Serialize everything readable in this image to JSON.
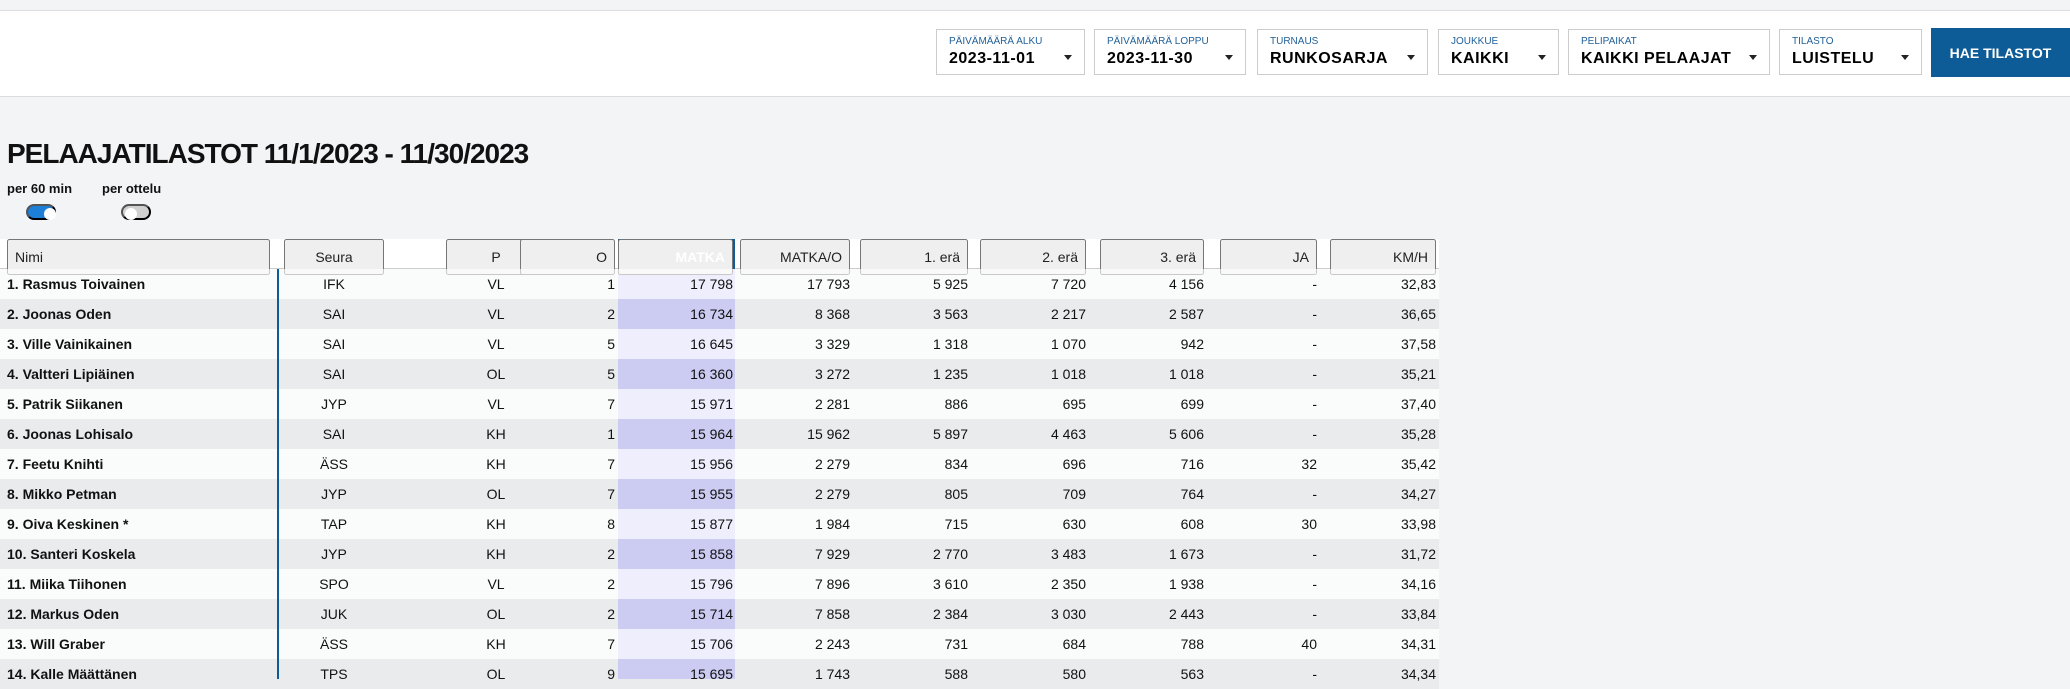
{
  "filters": [
    {
      "label": "PÄIVÄMÄÄRÄ ALKU",
      "value": "2023-11-01"
    },
    {
      "label": "PÄIVÄMÄÄRÄ LOPPU",
      "value": "2023-11-30"
    },
    {
      "label": "TURNAUS",
      "value": "RUNKOSARJA"
    },
    {
      "label": "JOUKKUE",
      "value": "KAIKKI"
    },
    {
      "label": "PELIPAIKAT",
      "value": "KAIKKI PELAAJAT"
    },
    {
      "label": "TILASTO",
      "value": "LUISTELU"
    }
  ],
  "button": "HAE TILASTOT",
  "title": "PELAAJATILASTOT 11/1/2023 - 11/30/2023",
  "toggles": [
    {
      "label": "per 60 min",
      "on": true
    },
    {
      "label": "per ottelu",
      "on": false
    }
  ],
  "table": {
    "columns": [
      "Nimi",
      "Seura",
      "P",
      "O",
      "MATKA",
      "MATKA/O",
      "1. erä",
      "2. erä",
      "3. erä",
      "JA",
      "KM/H"
    ],
    "rows": [
      [
        "1.  Rasmus Toivainen",
        "IFK",
        "VL",
        "1",
        "17 798",
        "17 793",
        "5 925",
        "7 720",
        "4 156",
        "-",
        "32,83"
      ],
      [
        "2.  Joonas Oden",
        "SAI",
        "VL",
        "2",
        "16 734",
        "8 368",
        "3 563",
        "2 217",
        "2 587",
        "-",
        "36,65"
      ],
      [
        "3.  Ville Vainikainen",
        "SAI",
        "VL",
        "5",
        "16 645",
        "3 329",
        "1 318",
        "1 070",
        "942",
        "-",
        "37,58"
      ],
      [
        "4.  Valtteri Lipiäinen",
        "SAI",
        "OL",
        "5",
        "16 360",
        "3 272",
        "1 235",
        "1 018",
        "1 018",
        "-",
        "35,21"
      ],
      [
        "5.  Patrik Siikanen",
        "JYP",
        "VL",
        "7",
        "15 971",
        "2 281",
        "886",
        "695",
        "699",
        "-",
        "37,40"
      ],
      [
        "6.  Joonas Lohisalo",
        "SAI",
        "KH",
        "1",
        "15 964",
        "15 962",
        "5 897",
        "4 463",
        "5 606",
        "-",
        "35,28"
      ],
      [
        "7.  Feetu Knihti",
        "ÄSS",
        "KH",
        "7",
        "15 956",
        "2 279",
        "834",
        "696",
        "716",
        "32",
        "35,42"
      ],
      [
        "8.  Mikko Petman",
        "JYP",
        "OL",
        "7",
        "15 955",
        "2 279",
        "805",
        "709",
        "764",
        "-",
        "34,27"
      ],
      [
        "9.  Oiva Keskinen *",
        "TAP",
        "KH",
        "8",
        "15 877",
        "1 984",
        "715",
        "630",
        "608",
        "30",
        "33,98"
      ],
      [
        "10.  Santeri Koskela",
        "JYP",
        "KH",
        "2",
        "15 858",
        "7 929",
        "2 770",
        "3 483",
        "1 673",
        "-",
        "31,72"
      ],
      [
        "11.  Miika Tiihonen",
        "SPO",
        "VL",
        "2",
        "15 796",
        "7 896",
        "3 610",
        "2 350",
        "1 938",
        "-",
        "34,16"
      ],
      [
        "12.  Markus Oden",
        "JUK",
        "OL",
        "2",
        "15 714",
        "7 858",
        "2 384",
        "3 030",
        "2 443",
        "-",
        "33,84"
      ],
      [
        "13.  Will Graber",
        "ÄSS",
        "KH",
        "7",
        "15 706",
        "2 243",
        "731",
        "684",
        "788",
        "40",
        "34,31"
      ],
      [
        "14.  Kalle Määttänen",
        "TPS",
        "OL",
        "9",
        "15 695",
        "1 743",
        "588",
        "580",
        "563",
        "-",
        "34,34"
      ]
    ]
  }
}
